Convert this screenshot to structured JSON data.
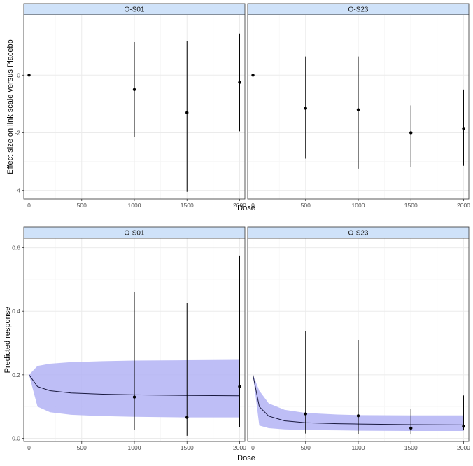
{
  "colors": {
    "strip_fill": "#cfe2f9",
    "panel_border": "#333333",
    "grid_major": "#ebebeb",
    "grid_minor": "#f5f5f5",
    "point": "#000000",
    "ribbon": "#b3b3f5",
    "line": "#1a1a40"
  },
  "chart_data": [
    {
      "type": "scatter",
      "xlabel": "Dose",
      "ylabel": "Effect size on link scale versus Placebo",
      "facets": [
        "O-S01",
        "O-S23"
      ],
      "xlim": [
        -50,
        2050
      ],
      "ylim": [
        -4.3,
        2.1
      ],
      "x_ticks": [
        0,
        500,
        1000,
        1500,
        2000
      ],
      "y_ticks": [
        0,
        -2,
        -4
      ],
      "x_tick_labels": [
        "0",
        "500",
        "1000",
        "1500",
        "2000"
      ],
      "y_tick_labels": [
        "0",
        "-2",
        "-4"
      ],
      "panels": [
        {
          "facet": "O-S01",
          "points": [
            {
              "x": 0,
              "y": 0,
              "lo": 0,
              "hi": 0
            },
            {
              "x": 1000,
              "y": -0.5,
              "lo": -2.15,
              "hi": 1.15
            },
            {
              "x": 1500,
              "y": -1.3,
              "lo": -4.05,
              "hi": 1.2
            },
            {
              "x": 2000,
              "y": -0.25,
              "lo": -1.95,
              "hi": 1.45
            }
          ]
        },
        {
          "facet": "O-S23",
          "points": [
            {
              "x": 0,
              "y": 0,
              "lo": 0,
              "hi": 0
            },
            {
              "x": 500,
              "y": -1.15,
              "lo": -2.9,
              "hi": 0.65
            },
            {
              "x": 1000,
              "y": -1.2,
              "lo": -3.25,
              "hi": 0.65
            },
            {
              "x": 1500,
              "y": -2.0,
              "lo": -3.2,
              "hi": -1.05
            },
            {
              "x": 2000,
              "y": -1.85,
              "lo": -3.15,
              "hi": -0.5
            }
          ]
        }
      ]
    },
    {
      "type": "line",
      "xlabel": "Dose",
      "ylabel": "Predicted response",
      "facets": [
        "O-S01",
        "O-S23"
      ],
      "xlim": [
        -50,
        2050
      ],
      "ylim": [
        -0.01,
        0.63
      ],
      "x_ticks": [
        0,
        500,
        1000,
        1500,
        2000
      ],
      "y_ticks": [
        0.0,
        0.2,
        0.4,
        0.6
      ],
      "x_tick_labels": [
        "0",
        "500",
        "1000",
        "1500",
        "2000"
      ],
      "y_tick_labels": [
        "0.0",
        "0.2",
        "0.4",
        "0.6"
      ],
      "panels": [
        {
          "facet": "O-S01",
          "curve": {
            "x": [
              0,
              80,
              200,
              400,
              700,
              1000,
              1500,
              2000
            ],
            "y": [
              0.2,
              0.163,
              0.15,
              0.143,
              0.139,
              0.137,
              0.135,
              0.134
            ],
            "lo": [
              0.2,
              0.1,
              0.082,
              0.074,
              0.07,
              0.068,
              0.066,
              0.066
            ],
            "hi": [
              0.2,
              0.228,
              0.235,
              0.24,
              0.243,
              0.245,
              0.246,
              0.247
            ]
          },
          "points": [
            {
              "x": 1000,
              "y": 0.13,
              "lo": 0.027,
              "hi": 0.46
            },
            {
              "x": 1500,
              "y": 0.066,
              "lo": 0.008,
              "hi": 0.425
            },
            {
              "x": 2000,
              "y": 0.163,
              "lo": 0.035,
              "hi": 0.575
            }
          ]
        },
        {
          "facet": "O-S23",
          "curve": {
            "x": [
              0,
              60,
              150,
              300,
              500,
              800,
              1000,
              1500,
              2000
            ],
            "y": [
              0.2,
              0.1,
              0.07,
              0.055,
              0.049,
              0.046,
              0.045,
              0.043,
              0.042
            ],
            "lo": [
              0.2,
              0.04,
              0.032,
              0.028,
              0.026,
              0.025,
              0.024,
              0.023,
              0.023
            ],
            "hi": [
              0.2,
              0.15,
              0.11,
              0.09,
              0.08,
              0.075,
              0.073,
              0.072,
              0.072
            ]
          },
          "points": [
            {
              "x": 500,
              "y": 0.077,
              "lo": 0.015,
              "hi": 0.338
            },
            {
              "x": 1000,
              "y": 0.071,
              "lo": 0.012,
              "hi": 0.31
            },
            {
              "x": 1500,
              "y": 0.032,
              "lo": 0.012,
              "hi": 0.092
            },
            {
              "x": 2000,
              "y": 0.038,
              "lo": 0.025,
              "hi": 0.135
            }
          ]
        }
      ]
    }
  ]
}
